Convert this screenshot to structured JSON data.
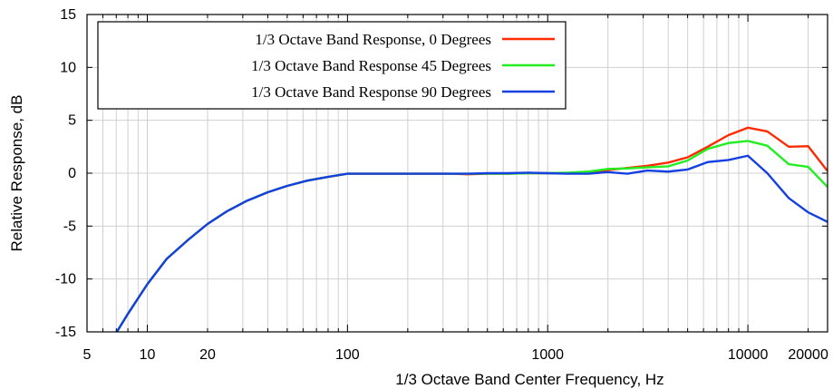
{
  "chart_data": {
    "type": "line",
    "title": "",
    "xlabel": "1/3 Octave Band Center Frequency, Hz",
    "ylabel": "Relative Response, dB",
    "x_scale": "log",
    "xlim": [
      5,
      25000
    ],
    "ylim": [
      -15,
      15
    ],
    "grid": true,
    "legend_position": "top-left",
    "x_tick_labels": [
      5,
      10,
      20,
      100,
      1000,
      10000,
      20000
    ],
    "y_ticks": [
      -15,
      -10,
      -5,
      0,
      5,
      10,
      15
    ],
    "x_minor_gridlines": [
      5,
      6,
      7,
      8,
      9,
      10,
      20,
      30,
      40,
      50,
      60,
      70,
      80,
      90,
      100,
      200,
      300,
      400,
      500,
      600,
      700,
      800,
      900,
      1000,
      2000,
      3000,
      4000,
      5000,
      6000,
      7000,
      8000,
      9000,
      10000,
      20000
    ],
    "x": [
      6.3,
      8,
      10,
      12.5,
      16,
      20,
      25,
      31.5,
      40,
      50,
      63,
      80,
      100,
      125,
      160,
      200,
      250,
      315,
      400,
      500,
      630,
      800,
      1000,
      1250,
      1600,
      2000,
      2500,
      3150,
      4000,
      5000,
      6300,
      8000,
      10000,
      12500,
      16000,
      20000,
      25000
    ],
    "series": [
      {
        "name": "1/3 Octave Band Response, 0 Degrees",
        "color": "#ff2a00",
        "values": [
          -16.5,
          -13.3,
          -10.5,
          -8.1,
          -6.3,
          -4.8,
          -3.6,
          -2.6,
          -1.8,
          -1.2,
          -0.7,
          -0.35,
          -0.05,
          -0.05,
          -0.05,
          -0.05,
          -0.05,
          -0.05,
          -0.1,
          -0.05,
          -0.05,
          0.0,
          0.0,
          0.0,
          0.1,
          0.3,
          0.5,
          0.7,
          1.0,
          1.5,
          2.5,
          3.6,
          4.3,
          3.95,
          2.5,
          2.55,
          0.2
        ]
      },
      {
        "name": "1/3 Octave Band Response 45 Degrees",
        "color": "#22ee22",
        "values": [
          -16.5,
          -13.3,
          -10.5,
          -8.1,
          -6.3,
          -4.8,
          -3.6,
          -2.6,
          -1.8,
          -1.2,
          -0.7,
          -0.35,
          -0.05,
          -0.05,
          -0.05,
          -0.05,
          -0.05,
          -0.05,
          -0.05,
          -0.05,
          -0.05,
          0.0,
          0.0,
          0.05,
          0.15,
          0.4,
          0.45,
          0.55,
          0.65,
          1.2,
          2.3,
          2.85,
          3.05,
          2.6,
          0.85,
          0.6,
          -1.3
        ]
      },
      {
        "name": "1/3 Octave Band Response 90 Degrees",
        "color": "#1540e0",
        "values": [
          -16.5,
          -13.3,
          -10.5,
          -8.1,
          -6.3,
          -4.8,
          -3.6,
          -2.6,
          -1.8,
          -1.2,
          -0.7,
          -0.35,
          -0.05,
          -0.05,
          -0.05,
          -0.05,
          -0.05,
          -0.05,
          -0.05,
          0.0,
          0.0,
          0.05,
          0.0,
          -0.05,
          -0.05,
          0.1,
          -0.05,
          0.25,
          0.15,
          0.35,
          1.05,
          1.25,
          1.65,
          0.0,
          -2.35,
          -3.7,
          -4.6
        ]
      }
    ]
  }
}
